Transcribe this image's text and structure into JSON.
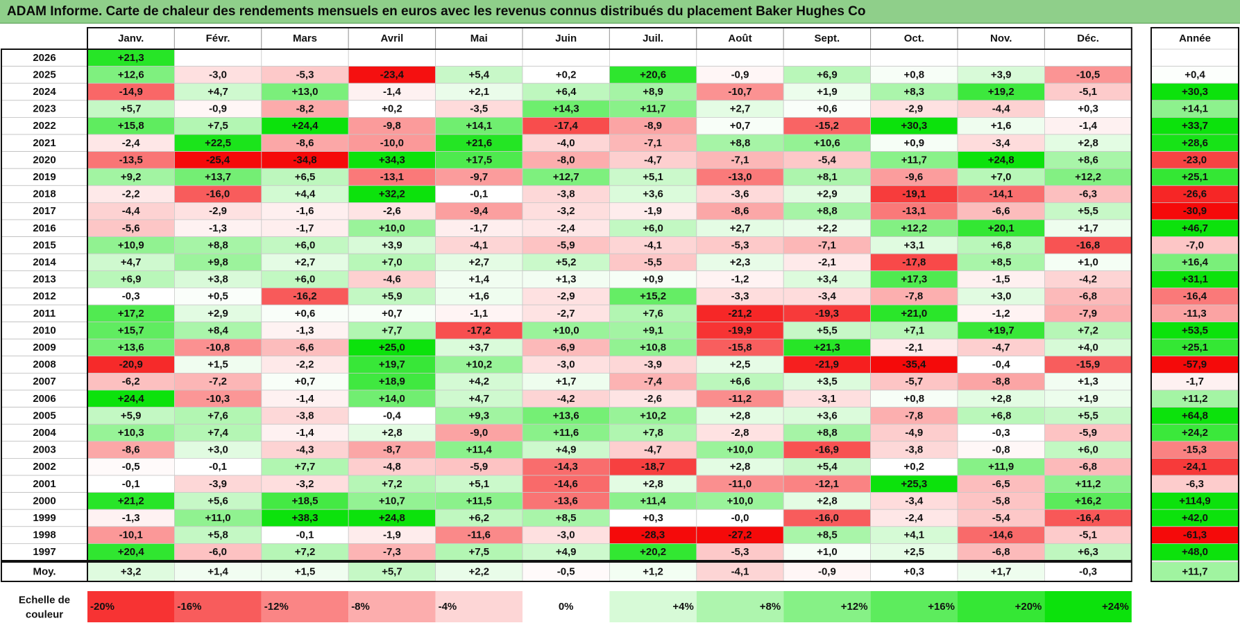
{
  "title": "ADAM Informe. Carte de chaleur des rendements mensuels en euros avec les revenus connus distribués du placement Baker Hughes Co",
  "chart_data": {
    "type": "heatmap",
    "columns": [
      "Janv.",
      "Févr.",
      "Mars",
      "Avril",
      "Mai",
      "Juin",
      "Juil.",
      "Août",
      "Sept.",
      "Oct.",
      "Nov.",
      "Déc."
    ],
    "year_header": "Année",
    "avg_label": "Moy.",
    "scale_label_line1": "Echelle de",
    "scale_label_line2": "couleur",
    "rows": [
      {
        "year": "2026",
        "values": [
          "+21,3",
          "",
          "",
          "",
          "",
          "",
          "",
          "",
          "",
          "",
          "",
          ""
        ],
        "total": ""
      },
      {
        "year": "2025",
        "values": [
          "+12,6",
          "-3,0",
          "-5,3",
          "-23,4",
          "+5,4",
          "+0,2",
          "+20,6",
          "-0,9",
          "+6,9",
          "+0,8",
          "+3,9",
          "-10,5"
        ],
        "total": "+0,4"
      },
      {
        "year": "2024",
        "values": [
          "-14,9",
          "+4,7",
          "+13,0",
          "-1,4",
          "+2,1",
          "+6,4",
          "+8,9",
          "-10,7",
          "+1,9",
          "+8,3",
          "+19,2",
          "-5,1"
        ],
        "total": "+30,3"
      },
      {
        "year": "2023",
        "values": [
          "+5,7",
          "-0,9",
          "-8,2",
          "+0,2",
          "-3,5",
          "+14,3",
          "+11,7",
          "+2,7",
          "+0,6",
          "-2,9",
          "-4,4",
          "+0,3"
        ],
        "total": "+14,1"
      },
      {
        "year": "2022",
        "values": [
          "+15,8",
          "+7,5",
          "+24,4",
          "-9,8",
          "+14,1",
          "-17,4",
          "-8,9",
          "+0,7",
          "-15,2",
          "+30,3",
          "+1,6",
          "-1,4"
        ],
        "total": "+33,7"
      },
      {
        "year": "2021",
        "values": [
          "-2,4",
          "+22,5",
          "-8,6",
          "-10,0",
          "+21,6",
          "-4,0",
          "-7,1",
          "+8,8",
          "+10,6",
          "+0,9",
          "-3,4",
          "+2,8"
        ],
        "total": "+28,6"
      },
      {
        "year": "2020",
        "values": [
          "-13,5",
          "-25,4",
          "-34,8",
          "+34,3",
          "+17,5",
          "-8,0",
          "-4,7",
          "-7,1",
          "-5,4",
          "+11,7",
          "+24,8",
          "+8,6"
        ],
        "total": "-23,0"
      },
      {
        "year": "2019",
        "values": [
          "+9,2",
          "+13,7",
          "+6,5",
          "-13,1",
          "-9,7",
          "+12,7",
          "+5,1",
          "-13,0",
          "+8,1",
          "-9,6",
          "+7,0",
          "+12,2"
        ],
        "total": "+25,1"
      },
      {
        "year": "2018",
        "values": [
          "-2,2",
          "-16,0",
          "+4,4",
          "+32,2",
          "-0,1",
          "-3,8",
          "+3,6",
          "-3,6",
          "+2,9",
          "-19,1",
          "-14,1",
          "-6,3"
        ],
        "total": "-26,6"
      },
      {
        "year": "2017",
        "values": [
          "-4,4",
          "-2,9",
          "-1,6",
          "-2,6",
          "-9,4",
          "-3,2",
          "-1,9",
          "-8,6",
          "+8,8",
          "-13,1",
          "-6,6",
          "+5,5"
        ],
        "total": "-30,9"
      },
      {
        "year": "2016",
        "values": [
          "-5,6",
          "-1,3",
          "-1,7",
          "+10,0",
          "-1,7",
          "-2,4",
          "+6,0",
          "+2,7",
          "+2,2",
          "+12,2",
          "+20,1",
          "+1,7"
        ],
        "total": "+46,7"
      },
      {
        "year": "2015",
        "values": [
          "+10,9",
          "+8,8",
          "+6,0",
          "+3,9",
          "-4,1",
          "-5,9",
          "-4,1",
          "-5,3",
          "-7,1",
          "+3,1",
          "+6,8",
          "-16,8"
        ],
        "total": "-7,0"
      },
      {
        "year": "2014",
        "values": [
          "+4,7",
          "+9,8",
          "+2,7",
          "+7,0",
          "+2,7",
          "+5,2",
          "-5,5",
          "+2,3",
          "-2,1",
          "-17,8",
          "+8,5",
          "+1,0"
        ],
        "total": "+16,4"
      },
      {
        "year": "2013",
        "values": [
          "+6,9",
          "+3,8",
          "+6,0",
          "-4,6",
          "+1,4",
          "+1,3",
          "+0,9",
          "-1,2",
          "+3,4",
          "+17,3",
          "-1,5",
          "-4,2"
        ],
        "total": "+31,1"
      },
      {
        "year": "2012",
        "values": [
          "-0,3",
          "+0,5",
          "-16,2",
          "+5,9",
          "+1,6",
          "-2,9",
          "+15,2",
          "-3,3",
          "-3,4",
          "-7,8",
          "+3,0",
          "-6,8"
        ],
        "total": "-16,4"
      },
      {
        "year": "2011",
        "values": [
          "+17,2",
          "+2,9",
          "+0,6",
          "+0,7",
          "-1,1",
          "-2,7",
          "+7,6",
          "-21,2",
          "-19,3",
          "+21,0",
          "-1,2",
          "-7,9"
        ],
        "total": "-11,3"
      },
      {
        "year": "2010",
        "values": [
          "+15,7",
          "+8,4",
          "-1,3",
          "+7,7",
          "-17,2",
          "+10,0",
          "+9,1",
          "-19,9",
          "+5,5",
          "+7,1",
          "+19,7",
          "+7,2"
        ],
        "total": "+53,5"
      },
      {
        "year": "2009",
        "values": [
          "+13,6",
          "-10,8",
          "-6,6",
          "+25,0",
          "+3,7",
          "-6,9",
          "+10,8",
          "-15,8",
          "+21,3",
          "-2,1",
          "-4,7",
          "+4,0"
        ],
        "total": "+25,1"
      },
      {
        "year": "2008",
        "values": [
          "-20,9",
          "+1,5",
          "-2,2",
          "+19,7",
          "+10,2",
          "-3,0",
          "-3,9",
          "+2,5",
          "-21,9",
          "-35,4",
          "-0,4",
          "-15,9"
        ],
        "total": "-57,9"
      },
      {
        "year": "2007",
        "values": [
          "-6,2",
          "-7,2",
          "+0,7",
          "+18,9",
          "+4,2",
          "+1,7",
          "-7,4",
          "+6,6",
          "+3,5",
          "-5,7",
          "-8,8",
          "+1,3"
        ],
        "total": "-1,7"
      },
      {
        "year": "2006",
        "values": [
          "+24,4",
          "-10,3",
          "-1,4",
          "+14,0",
          "+4,7",
          "-4,2",
          "-2,6",
          "-11,2",
          "-3,1",
          "+0,8",
          "+2,8",
          "+1,9"
        ],
        "total": "+11,2"
      },
      {
        "year": "2005",
        "values": [
          "+5,9",
          "+7,6",
          "-3,8",
          "-0,4",
          "+9,3",
          "+13,6",
          "+10,2",
          "+2,8",
          "+3,6",
          "-7,8",
          "+6,8",
          "+5,5"
        ],
        "total": "+64,8"
      },
      {
        "year": "2004",
        "values": [
          "+10,3",
          "+7,4",
          "-1,4",
          "+2,8",
          "-9,0",
          "+11,6",
          "+7,8",
          "-2,8",
          "+8,8",
          "-4,9",
          "-0,3",
          "-5,9"
        ],
        "total": "+24,2"
      },
      {
        "year": "2003",
        "values": [
          "-8,6",
          "+3,0",
          "-4,3",
          "-8,7",
          "+11,4",
          "+4,9",
          "-4,7",
          "+10,0",
          "-16,9",
          "-3,8",
          "-0,8",
          "+6,0"
        ],
        "total": "-15,3"
      },
      {
        "year": "2002",
        "values": [
          "-0,5",
          "-0,1",
          "+7,7",
          "-4,8",
          "-5,9",
          "-14,3",
          "-18,7",
          "+2,8",
          "+5,4",
          "+0,2",
          "+11,9",
          "-6,8"
        ],
        "total": "-24,1"
      },
      {
        "year": "2001",
        "values": [
          "-0,1",
          "-3,9",
          "-3,2",
          "+7,2",
          "+5,1",
          "-14,6",
          "+2,8",
          "-11,0",
          "-12,1",
          "+25,3",
          "-6,5",
          "+11,2"
        ],
        "total": "-6,3"
      },
      {
        "year": "2000",
        "values": [
          "+21,2",
          "+5,6",
          "+18,5",
          "+10,7",
          "+11,5",
          "-13,6",
          "+11,4",
          "+10,0",
          "+2,8",
          "-3,4",
          "-5,8",
          "+16,2"
        ],
        "total": "+114,9"
      },
      {
        "year": "1999",
        "values": [
          "-1,3",
          "+11,0",
          "+38,3",
          "+24,8",
          "+6,2",
          "+8,5",
          "+0,3",
          "-0,0",
          "-16,0",
          "-2,4",
          "-5,4",
          "-16,4"
        ],
        "total": "+42,0"
      },
      {
        "year": "1998",
        "values": [
          "-10,1",
          "+5,8",
          "-0,1",
          "-1,9",
          "-11,6",
          "-3,0",
          "-28,3",
          "-27,2",
          "+8,5",
          "+4,1",
          "-14,6",
          "-5,1"
        ],
        "total": "-61,3"
      },
      {
        "year": "1997",
        "values": [
          "+20,4",
          "-6,0",
          "+7,2",
          "-7,3",
          "+7,5",
          "+4,9",
          "+20,2",
          "-5,3",
          "+1,0",
          "+2,5",
          "-6,8",
          "+6,3"
        ],
        "total": "+48,0"
      }
    ],
    "averages": [
      "+3,2",
      "+1,4",
      "+1,5",
      "+5,7",
      "+2,2",
      "-0,5",
      "+1,2",
      "-4,1",
      "-0,9",
      "+0,3",
      "+1,7",
      "-0,3"
    ],
    "average_total": "+11,7",
    "scale": [
      "-20%",
      "-16%",
      "-12%",
      "-8%",
      "-4%",
      "0%",
      "+4%",
      "+8%",
      "+12%",
      "+16%",
      "+20%",
      "+24%"
    ],
    "scale_values": [
      -20,
      -16,
      -12,
      -8,
      -4,
      0,
      4,
      8,
      12,
      16,
      20,
      24
    ]
  }
}
